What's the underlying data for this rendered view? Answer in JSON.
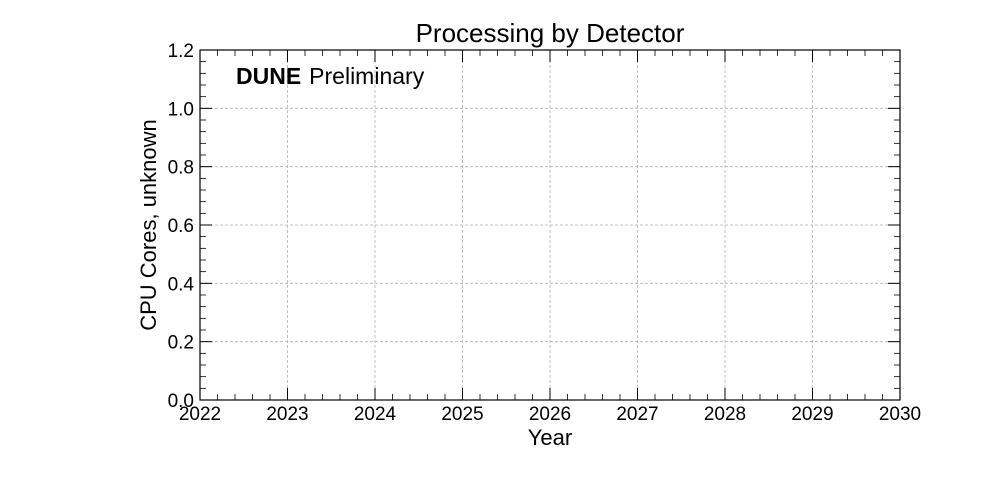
{
  "chart_data": {
    "type": "line",
    "title": "Processing by Detector",
    "xlabel": "Year",
    "ylabel": "CPU Cores, unknown",
    "xlim": [
      2022,
      2030
    ],
    "ylim": [
      0.0,
      1.2
    ],
    "x_ticks": [
      "2022",
      "2023",
      "2024",
      "2025",
      "2026",
      "2027",
      "2028",
      "2029",
      "2030"
    ],
    "y_ticks": [
      "0.0",
      "0.2",
      "0.4",
      "0.6",
      "0.8",
      "1.0",
      "1.2"
    ],
    "grid": true,
    "series": [],
    "annotation": {
      "bold": "DUNE",
      "text": "Preliminary"
    }
  }
}
